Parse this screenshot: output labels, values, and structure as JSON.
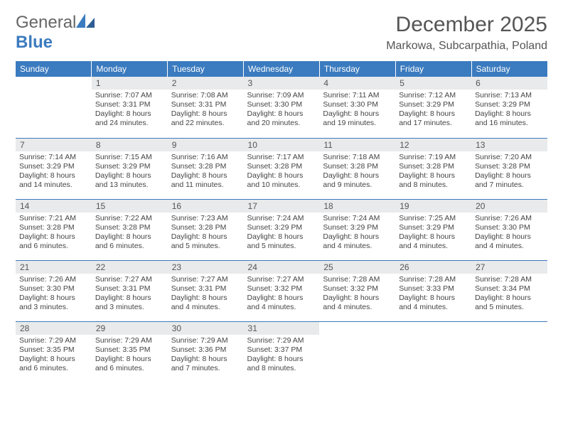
{
  "brand": {
    "part1": "General",
    "part2": "Blue"
  },
  "title": "December 2025",
  "location": "Markowa, Subcarpathia, Poland",
  "colors": {
    "header_bg": "#3b7bbf",
    "daynum_bg": "#e9eaeb",
    "text": "#555555",
    "body_text": "#444444",
    "rule": "#3b7bbf",
    "background": "#ffffff"
  },
  "day_headers": [
    "Sunday",
    "Monday",
    "Tuesday",
    "Wednesday",
    "Thursday",
    "Friday",
    "Saturday"
  ],
  "weeks": [
    [
      {
        "empty": true
      },
      {
        "n": "1",
        "sunrise": "Sunrise: 7:07 AM",
        "sunset": "Sunset: 3:31 PM",
        "day1": "Daylight: 8 hours",
        "day2": "and 24 minutes."
      },
      {
        "n": "2",
        "sunrise": "Sunrise: 7:08 AM",
        "sunset": "Sunset: 3:31 PM",
        "day1": "Daylight: 8 hours",
        "day2": "and 22 minutes."
      },
      {
        "n": "3",
        "sunrise": "Sunrise: 7:09 AM",
        "sunset": "Sunset: 3:30 PM",
        "day1": "Daylight: 8 hours",
        "day2": "and 20 minutes."
      },
      {
        "n": "4",
        "sunrise": "Sunrise: 7:11 AM",
        "sunset": "Sunset: 3:30 PM",
        "day1": "Daylight: 8 hours",
        "day2": "and 19 minutes."
      },
      {
        "n": "5",
        "sunrise": "Sunrise: 7:12 AM",
        "sunset": "Sunset: 3:29 PM",
        "day1": "Daylight: 8 hours",
        "day2": "and 17 minutes."
      },
      {
        "n": "6",
        "sunrise": "Sunrise: 7:13 AM",
        "sunset": "Sunset: 3:29 PM",
        "day1": "Daylight: 8 hours",
        "day2": "and 16 minutes."
      }
    ],
    [
      {
        "n": "7",
        "sunrise": "Sunrise: 7:14 AM",
        "sunset": "Sunset: 3:29 PM",
        "day1": "Daylight: 8 hours",
        "day2": "and 14 minutes."
      },
      {
        "n": "8",
        "sunrise": "Sunrise: 7:15 AM",
        "sunset": "Sunset: 3:29 PM",
        "day1": "Daylight: 8 hours",
        "day2": "and 13 minutes."
      },
      {
        "n": "9",
        "sunrise": "Sunrise: 7:16 AM",
        "sunset": "Sunset: 3:28 PM",
        "day1": "Daylight: 8 hours",
        "day2": "and 11 minutes."
      },
      {
        "n": "10",
        "sunrise": "Sunrise: 7:17 AM",
        "sunset": "Sunset: 3:28 PM",
        "day1": "Daylight: 8 hours",
        "day2": "and 10 minutes."
      },
      {
        "n": "11",
        "sunrise": "Sunrise: 7:18 AM",
        "sunset": "Sunset: 3:28 PM",
        "day1": "Daylight: 8 hours",
        "day2": "and 9 minutes."
      },
      {
        "n": "12",
        "sunrise": "Sunrise: 7:19 AM",
        "sunset": "Sunset: 3:28 PM",
        "day1": "Daylight: 8 hours",
        "day2": "and 8 minutes."
      },
      {
        "n": "13",
        "sunrise": "Sunrise: 7:20 AM",
        "sunset": "Sunset: 3:28 PM",
        "day1": "Daylight: 8 hours",
        "day2": "and 7 minutes."
      }
    ],
    [
      {
        "n": "14",
        "sunrise": "Sunrise: 7:21 AM",
        "sunset": "Sunset: 3:28 PM",
        "day1": "Daylight: 8 hours",
        "day2": "and 6 minutes."
      },
      {
        "n": "15",
        "sunrise": "Sunrise: 7:22 AM",
        "sunset": "Sunset: 3:28 PM",
        "day1": "Daylight: 8 hours",
        "day2": "and 6 minutes."
      },
      {
        "n": "16",
        "sunrise": "Sunrise: 7:23 AM",
        "sunset": "Sunset: 3:28 PM",
        "day1": "Daylight: 8 hours",
        "day2": "and 5 minutes."
      },
      {
        "n": "17",
        "sunrise": "Sunrise: 7:24 AM",
        "sunset": "Sunset: 3:29 PM",
        "day1": "Daylight: 8 hours",
        "day2": "and 5 minutes."
      },
      {
        "n": "18",
        "sunrise": "Sunrise: 7:24 AM",
        "sunset": "Sunset: 3:29 PM",
        "day1": "Daylight: 8 hours",
        "day2": "and 4 minutes."
      },
      {
        "n": "19",
        "sunrise": "Sunrise: 7:25 AM",
        "sunset": "Sunset: 3:29 PM",
        "day1": "Daylight: 8 hours",
        "day2": "and 4 minutes."
      },
      {
        "n": "20",
        "sunrise": "Sunrise: 7:26 AM",
        "sunset": "Sunset: 3:30 PM",
        "day1": "Daylight: 8 hours",
        "day2": "and 4 minutes."
      }
    ],
    [
      {
        "n": "21",
        "sunrise": "Sunrise: 7:26 AM",
        "sunset": "Sunset: 3:30 PM",
        "day1": "Daylight: 8 hours",
        "day2": "and 3 minutes."
      },
      {
        "n": "22",
        "sunrise": "Sunrise: 7:27 AM",
        "sunset": "Sunset: 3:31 PM",
        "day1": "Daylight: 8 hours",
        "day2": "and 3 minutes."
      },
      {
        "n": "23",
        "sunrise": "Sunrise: 7:27 AM",
        "sunset": "Sunset: 3:31 PM",
        "day1": "Daylight: 8 hours",
        "day2": "and 4 minutes."
      },
      {
        "n": "24",
        "sunrise": "Sunrise: 7:27 AM",
        "sunset": "Sunset: 3:32 PM",
        "day1": "Daylight: 8 hours",
        "day2": "and 4 minutes."
      },
      {
        "n": "25",
        "sunrise": "Sunrise: 7:28 AM",
        "sunset": "Sunset: 3:32 PM",
        "day1": "Daylight: 8 hours",
        "day2": "and 4 minutes."
      },
      {
        "n": "26",
        "sunrise": "Sunrise: 7:28 AM",
        "sunset": "Sunset: 3:33 PM",
        "day1": "Daylight: 8 hours",
        "day2": "and 4 minutes."
      },
      {
        "n": "27",
        "sunrise": "Sunrise: 7:28 AM",
        "sunset": "Sunset: 3:34 PM",
        "day1": "Daylight: 8 hours",
        "day2": "and 5 minutes."
      }
    ],
    [
      {
        "n": "28",
        "sunrise": "Sunrise: 7:29 AM",
        "sunset": "Sunset: 3:35 PM",
        "day1": "Daylight: 8 hours",
        "day2": "and 6 minutes."
      },
      {
        "n": "29",
        "sunrise": "Sunrise: 7:29 AM",
        "sunset": "Sunset: 3:35 PM",
        "day1": "Daylight: 8 hours",
        "day2": "and 6 minutes."
      },
      {
        "n": "30",
        "sunrise": "Sunrise: 7:29 AM",
        "sunset": "Sunset: 3:36 PM",
        "day1": "Daylight: 8 hours",
        "day2": "and 7 minutes."
      },
      {
        "n": "31",
        "sunrise": "Sunrise: 7:29 AM",
        "sunset": "Sunset: 3:37 PM",
        "day1": "Daylight: 8 hours",
        "day2": "and 8 minutes."
      },
      {
        "empty": true
      },
      {
        "empty": true
      },
      {
        "empty": true
      }
    ]
  ]
}
